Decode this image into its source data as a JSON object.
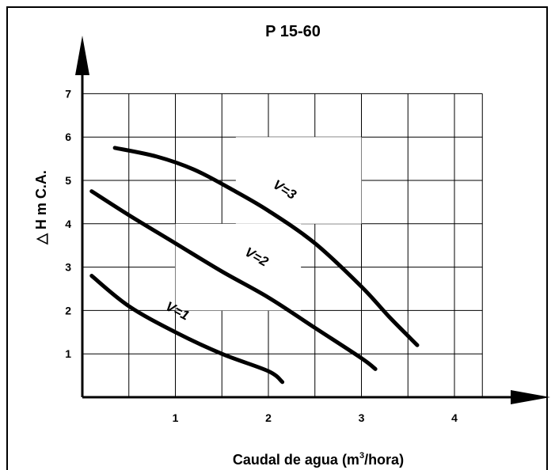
{
  "chart_data": {
    "type": "line",
    "title": "P 15-60",
    "xlabel_prefix": "Caudal de agua (m",
    "xlabel_sup": "3",
    "xlabel_suffix": "/hora)",
    "ylabel": "△ H m C.A.",
    "xlim": [
      0,
      4.6
    ],
    "ylim": [
      0,
      7
    ],
    "x_ticks": [
      "1",
      "2",
      "3",
      "4"
    ],
    "y_ticks": [
      "1",
      "2",
      "3",
      "4",
      "5",
      "6",
      "7"
    ],
    "grid": true,
    "series": [
      {
        "name": "V=1",
        "points": [
          [
            0.1,
            2.8
          ],
          [
            0.5,
            2.1
          ],
          [
            1.0,
            1.5
          ],
          [
            1.5,
            1.0
          ],
          [
            2.0,
            0.6
          ],
          [
            2.15,
            0.35
          ]
        ]
      },
      {
        "name": "V=2",
        "points": [
          [
            0.1,
            4.75
          ],
          [
            0.5,
            4.2
          ],
          [
            1.0,
            3.55
          ],
          [
            1.5,
            2.9
          ],
          [
            2.0,
            2.3
          ],
          [
            2.5,
            1.6
          ],
          [
            3.0,
            0.9
          ],
          [
            3.15,
            0.65
          ]
        ]
      },
      {
        "name": "V=3",
        "points": [
          [
            0.35,
            5.75
          ],
          [
            0.8,
            5.55
          ],
          [
            1.2,
            5.25
          ],
          [
            1.6,
            4.8
          ],
          [
            2.0,
            4.3
          ],
          [
            2.5,
            3.55
          ],
          [
            3.0,
            2.55
          ],
          [
            3.3,
            1.85
          ],
          [
            3.6,
            1.2
          ]
        ]
      }
    ]
  }
}
